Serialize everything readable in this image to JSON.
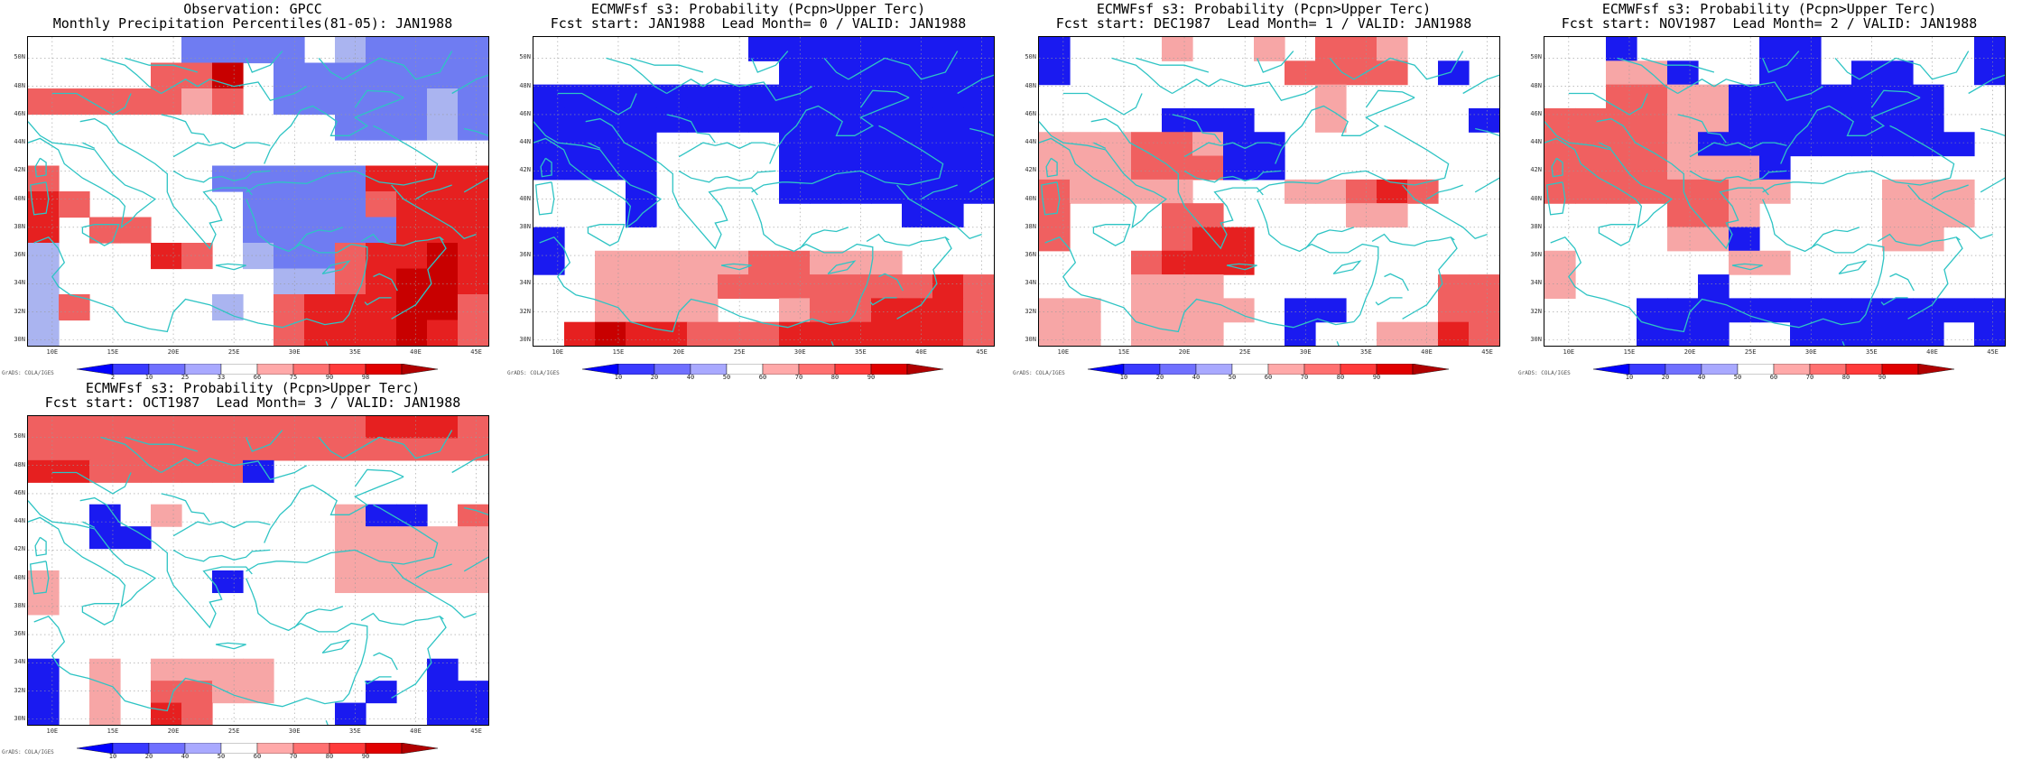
{
  "panels": [
    {
      "id": "obs",
      "title1": "Observation: GPCC",
      "title2": "Monthly Precipitation Percentiles(81-05): JAN1988",
      "legend": "percentile",
      "cells": [
        [
          0,
          0,
          0,
          0,
          0,
          "B2",
          "B2",
          "B2",
          "B2",
          0,
          "B1",
          "B2",
          "B2",
          "B2",
          "B2"
        ],
        [
          0,
          0,
          0,
          0,
          "R2",
          "R2",
          "R4",
          0,
          "B2",
          "B2",
          "B2",
          "B2",
          "B2",
          "B2",
          "B2"
        ],
        [
          "R2",
          "R2",
          "R2",
          "R2",
          "R2",
          "R1",
          "R2",
          0,
          "B2",
          "B2",
          "B2",
          "B2",
          "B2",
          "B1",
          "B2"
        ],
        [
          0,
          0,
          0,
          0,
          0,
          0,
          0,
          0,
          0,
          0,
          "B2",
          "B2",
          "B2",
          "B1",
          "B2"
        ],
        [
          0,
          0,
          0,
          0,
          0,
          0,
          0,
          0,
          0,
          0,
          0,
          0,
          0,
          0,
          0
        ],
        [
          "R2",
          0,
          0,
          0,
          0,
          0,
          "B2",
          "B2",
          "B2",
          "B2",
          "B2",
          "R3",
          "R3",
          "R3",
          "R3"
        ],
        [
          "R3",
          "R2",
          0,
          0,
          0,
          0,
          0,
          "B2",
          "B2",
          "B2",
          "B2",
          "R2",
          "R3",
          "R3",
          "R3"
        ],
        [
          "R3",
          0,
          "R2",
          "R2",
          0,
          0,
          0,
          "B2",
          "B2",
          "B2",
          "B2",
          "B2",
          "R3",
          "R3",
          "R3"
        ],
        [
          "B1",
          0,
          0,
          0,
          "R3",
          "R2",
          0,
          "B1",
          "B2",
          "B2",
          "R2",
          "R3",
          "R3",
          "R4",
          "R3"
        ],
        [
          "B1",
          0,
          0,
          0,
          0,
          0,
          0,
          0,
          "B1",
          "B1",
          "R2",
          "R3",
          "R4",
          "R4",
          "R3"
        ],
        [
          "B1",
          "R2",
          0,
          0,
          0,
          0,
          "B1",
          0,
          "R2",
          "R3",
          "R3",
          "R3",
          "R4",
          "R4",
          "R2"
        ],
        [
          "B1",
          0,
          0,
          0,
          0,
          0,
          0,
          0,
          "R2",
          "R3",
          "R3",
          "R3",
          "R4",
          "R3",
          "R2"
        ]
      ],
      "scale": [
        2,
        10,
        25,
        33,
        66,
        75,
        90,
        98
      ]
    },
    {
      "id": "lead0",
      "title1": "ECMWFsf s3: Probability (Pcpn>Upper Terc)",
      "title2": "Fcst start: JAN1988  Lead Month= 0 / VALID: JAN1988",
      "legend": "prob",
      "cells": [
        [
          0,
          0,
          0,
          0,
          0,
          0,
          0,
          "B3",
          "B3",
          "B3",
          "B3",
          "B3",
          "B3",
          "B3",
          "B3"
        ],
        [
          0,
          0,
          0,
          0,
          0,
          0,
          0,
          0,
          "B3",
          "B3",
          "B3",
          "B3",
          "B3",
          "B3",
          "B3"
        ],
        [
          "B3",
          "B3",
          "B3",
          "B3",
          "B3",
          "B3",
          "B3",
          "B3",
          "B3",
          "B3",
          "B3",
          "B3",
          "B3",
          "B3",
          "B3"
        ],
        [
          "B3",
          "B3",
          "B3",
          "B3",
          "B3",
          "B3",
          "B3",
          "B3",
          "B3",
          "B3",
          "B3",
          "B3",
          "B3",
          "B3",
          "B3"
        ],
        [
          "B3",
          "B3",
          "B3",
          "B3",
          0,
          0,
          0,
          0,
          "B3",
          "B3",
          "B3",
          "B3",
          "B3",
          "B3",
          "B3"
        ],
        [
          "B3",
          "B3",
          "B3",
          "B3",
          0,
          0,
          0,
          0,
          "B3",
          "B3",
          "B3",
          "B3",
          "B3",
          "B3",
          "B3"
        ],
        [
          0,
          0,
          0,
          "B3",
          0,
          0,
          0,
          0,
          "B3",
          "B3",
          "B3",
          "B3",
          "B3",
          "B3",
          "B3"
        ],
        [
          0,
          0,
          0,
          "B3",
          0,
          0,
          0,
          0,
          0,
          0,
          0,
          0,
          "B3",
          "B3",
          0
        ],
        [
          "B3",
          0,
          0,
          0,
          0,
          0,
          0,
          0,
          0,
          0,
          0,
          0,
          0,
          0,
          0
        ],
        [
          "B3",
          0,
          "R1",
          "R1",
          "R1",
          "R1",
          "R1",
          "R2",
          "R2",
          "R1",
          "R1",
          "R1",
          0,
          0,
          0
        ],
        [
          0,
          0,
          "R1",
          "R1",
          "R1",
          "R1",
          "R2",
          "R2",
          "R2",
          "R2",
          "R2",
          "R2",
          "R2",
          "R3",
          "R2"
        ],
        [
          0,
          0,
          "R1",
          "R1",
          "R1",
          "R1",
          0,
          0,
          "R1",
          "R2",
          "R2",
          "R3",
          "R3",
          "R3",
          "R2"
        ],
        [
          0,
          "R3",
          "R4",
          "R3",
          "R3",
          "R2",
          "R2",
          "R2",
          "R3",
          "R3",
          "R3",
          "R3",
          "R3",
          "R3",
          "R2"
        ]
      ],
      "scale": [
        10,
        20,
        40,
        50,
        60,
        70,
        80,
        90
      ]
    },
    {
      "id": "lead1",
      "title1": "ECMWFsf s3: Probability (Pcpn>Upper Terc)",
      "title2": "Fcst start: DEC1987  Lead Month= 1 / VALID: JAN1988",
      "legend": "prob",
      "cells": [
        [
          "B3",
          0,
          0,
          0,
          "R1",
          0,
          0,
          "R1",
          0,
          "R2",
          "R2",
          "R1",
          0,
          0,
          0
        ],
        [
          "B3",
          0,
          0,
          0,
          0,
          0,
          0,
          0,
          "R2",
          "R2",
          "R2",
          "R2",
          0,
          "B3",
          0
        ],
        [
          0,
          0,
          0,
          0,
          0,
          0,
          0,
          0,
          0,
          "R1",
          0,
          0,
          0,
          0,
          0
        ],
        [
          0,
          0,
          0,
          0,
          "B3",
          "B3",
          "B3",
          0,
          0,
          "R1",
          0,
          0,
          0,
          0,
          "B3"
        ],
        [
          "R1",
          "R1",
          "R1",
          "R2",
          "R2",
          "R1",
          "B3",
          "B3",
          0,
          0,
          0,
          0,
          0,
          0,
          0
        ],
        [
          "R1",
          "R1",
          "R1",
          "R2",
          "R2",
          "R2",
          "B3",
          "B3",
          0,
          0,
          0,
          0,
          0,
          0,
          0
        ],
        [
          "R2",
          "R1",
          "R1",
          "R1",
          "R1",
          0,
          0,
          0,
          "R1",
          "R1",
          "R2",
          "R3",
          "R2",
          0,
          0
        ],
        [
          "R2",
          0,
          0,
          0,
          "R2",
          "R2",
          0,
          0,
          0,
          0,
          "R1",
          "R1",
          0,
          0,
          0
        ],
        [
          "R2",
          0,
          0,
          0,
          "R2",
          "R3",
          "R3",
          0,
          0,
          0,
          0,
          0,
          0,
          0,
          0
        ],
        [
          0,
          0,
          0,
          "R2",
          "R3",
          "R3",
          "R3",
          0,
          0,
          0,
          0,
          0,
          0,
          0,
          0
        ],
        [
          0,
          0,
          0,
          "R1",
          "R1",
          "R1",
          0,
          0,
          0,
          0,
          0,
          0,
          0,
          "R2",
          "R2"
        ],
        [
          "R1",
          "R1",
          0,
          "R1",
          "R1",
          "R1",
          "R1",
          0,
          "B3",
          "B3",
          0,
          0,
          0,
          "R2",
          "R2"
        ],
        [
          "R1",
          "R1",
          0,
          "R1",
          "R1",
          "R1",
          0,
          0,
          "B3",
          0,
          0,
          "R1",
          "R1",
          "R3",
          "R2"
        ]
      ],
      "scale": [
        10,
        20,
        40,
        50,
        60,
        70,
        80,
        90
      ]
    },
    {
      "id": "lead2",
      "title1": "ECMWFsf s3: Probability (Pcpn>Upper Terc)",
      "title2": "Fcst start: NOV1987  Lead Month= 2 / VALID: JAN1988",
      "legend": "prob",
      "cells": [
        [
          0,
          0,
          "B3",
          0,
          0,
          0,
          0,
          "B3",
          "B3",
          0,
          0,
          0,
          0,
          0,
          "B3"
        ],
        [
          0,
          0,
          "R1",
          "R1",
          "B3",
          0,
          0,
          "B3",
          "B3",
          0,
          "B3",
          "B3",
          0,
          0,
          "B3"
        ],
        [
          0,
          0,
          "R2",
          "R2",
          "R1",
          "R1",
          "B3",
          "B3",
          "B3",
          "B3",
          "B3",
          "B3",
          "B3",
          0,
          0
        ],
        [
          "R2",
          "R2",
          "R2",
          "R2",
          "R1",
          "R1",
          "B3",
          "B3",
          "B3",
          "B3",
          "B3",
          "B3",
          "B3",
          0,
          0
        ],
        [
          "R2",
          "R2",
          "R2",
          "R2",
          "R1",
          "B3",
          "B3",
          "B3",
          "B3",
          "B3",
          "B3",
          "B3",
          "B3",
          "B3",
          0
        ],
        [
          "R2",
          "R2",
          "R2",
          "R2",
          "R1",
          "R1",
          "R1",
          "B3",
          0,
          0,
          0,
          0,
          0,
          0,
          0
        ],
        [
          "R2",
          "R2",
          "R2",
          "R2",
          "R2",
          "R2",
          "R1",
          "R1",
          0,
          0,
          0,
          "R1",
          "R1",
          "R1",
          0
        ],
        [
          0,
          0,
          0,
          0,
          "R2",
          "R2",
          "R1",
          0,
          0,
          0,
          0,
          "R1",
          "R1",
          "R1",
          0
        ],
        [
          0,
          0,
          0,
          0,
          "R1",
          "R1",
          "B3",
          0,
          0,
          0,
          0,
          "R1",
          "R1",
          0,
          0
        ],
        [
          "R1",
          0,
          0,
          0,
          0,
          0,
          "R1",
          "R1",
          0,
          0,
          0,
          0,
          0,
          0,
          0
        ],
        [
          "R1",
          0,
          0,
          0,
          0,
          "B3",
          0,
          0,
          0,
          0,
          0,
          0,
          0,
          0,
          0
        ],
        [
          0,
          0,
          0,
          "B3",
          "B3",
          "B3",
          "B3",
          "B3",
          "B3",
          "B3",
          "B3",
          "B3",
          "B3",
          "B3",
          "B3"
        ],
        [
          0,
          0,
          0,
          "B3",
          "B3",
          "B3",
          0,
          0,
          "B3",
          "B3",
          "B3",
          "B3",
          "B3",
          0,
          "B3"
        ]
      ],
      "scale": [
        10,
        20,
        40,
        50,
        60,
        70,
        80,
        90
      ]
    },
    {
      "id": "lead3",
      "title1": "ECMWFsf s3: Probability (Pcpn>Upper Terc)",
      "title2": "Fcst start: OCT1987  Lead Month= 3 / VALID: JAN1988",
      "legend": "prob",
      "cells": [
        [
          "R2",
          "R2",
          "R2",
          "R2",
          "R2",
          "R2",
          "R2",
          "R2",
          "R2",
          "R2",
          "R2",
          "R3",
          "R3",
          "R3",
          "R2"
        ],
        [
          "R2",
          "R2",
          "R2",
          "R2",
          "R2",
          "R2",
          "R2",
          "R2",
          "R2",
          "R2",
          "R2",
          "R2",
          "R2",
          "R2",
          "R2"
        ],
        [
          "R3",
          "R3",
          "R2",
          "R2",
          "R2",
          "R2",
          "R2",
          "B3",
          0,
          0,
          0,
          0,
          0,
          0,
          0
        ],
        [
          0,
          0,
          0,
          0,
          0,
          0,
          0,
          0,
          0,
          0,
          0,
          0,
          0,
          0,
          0
        ],
        [
          0,
          0,
          "B3",
          0,
          "R1",
          0,
          0,
          0,
          0,
          0,
          "R1",
          "B3",
          "B3",
          0,
          "R2"
        ],
        [
          0,
          0,
          "B3",
          "B3",
          0,
          0,
          0,
          0,
          0,
          0,
          "R1",
          "R1",
          "R1",
          "R1",
          "R1"
        ],
        [
          0,
          0,
          0,
          0,
          0,
          0,
          0,
          0,
          0,
          0,
          "R1",
          "R1",
          "R1",
          "R1",
          "R1"
        ],
        [
          "R1",
          0,
          0,
          0,
          0,
          0,
          "B3",
          0,
          0,
          0,
          "R1",
          "R1",
          "R1",
          "R1",
          "R1"
        ],
        [
          "R1",
          0,
          0,
          0,
          0,
          0,
          0,
          0,
          0,
          0,
          0,
          0,
          0,
          0,
          0
        ],
        [
          0,
          0,
          0,
          0,
          0,
          0,
          0,
          0,
          0,
          0,
          0,
          0,
          0,
          0,
          0
        ],
        [
          0,
          0,
          0,
          0,
          0,
          0,
          0,
          0,
          0,
          0,
          0,
          0,
          0,
          0,
          0
        ],
        [
          "B3",
          0,
          "R1",
          0,
          "R1",
          "R1",
          "R1",
          "R1",
          0,
          0,
          0,
          0,
          0,
          "B3",
          0
        ],
        [
          "B3",
          0,
          "R1",
          0,
          "R2",
          "R2",
          "R1",
          "R1",
          0,
          0,
          0,
          "B3",
          0,
          "B3",
          "B3"
        ],
        [
          "B3",
          0,
          "R1",
          0,
          "R3",
          "R2",
          0,
          0,
          0,
          0,
          "B3",
          0,
          0,
          "B3",
          "B3"
        ]
      ],
      "scale": [
        10,
        20,
        40,
        50,
        60,
        70,
        80,
        90
      ]
    }
  ],
  "lat_labels": [
    "50N",
    "48N",
    "46N",
    "44N",
    "42N",
    "40N",
    "38N",
    "36N",
    "34N",
    "32N",
    "30N"
  ],
  "lon_labels": [
    "10E",
    "15E",
    "20E",
    "25E",
    "30E",
    "35E",
    "40E",
    "45E"
  ],
  "grads_label": "GrADS: COLA/IGES",
  "colors": {
    "B1": "#aab4f0",
    "B2": "#6f7cf2",
    "B3": "#1a1af0",
    "R1": "#f7a6a6",
    "R2": "#f06060",
    "R3": "#e62020",
    "R4": "#c80000",
    "coast": "#2ec4c4"
  }
}
